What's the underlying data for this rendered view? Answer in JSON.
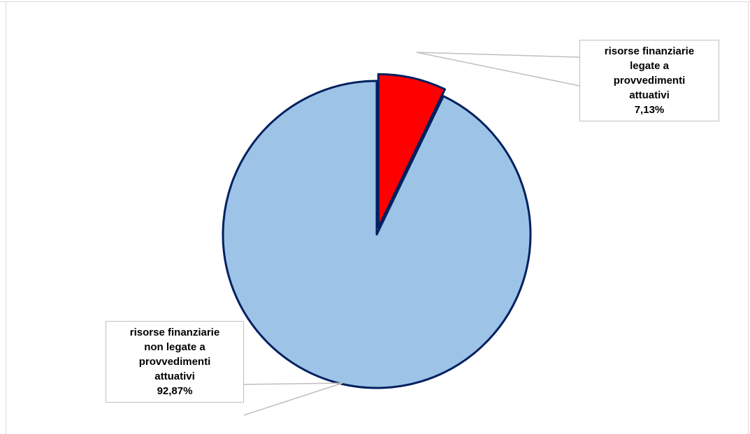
{
  "chart_data": {
    "type": "pie",
    "slices": [
      {
        "label_lines": [
          "risorse finanziarie",
          "non legate a",
          "provvedimenti",
          "attuativi"
        ],
        "value": 92.87,
        "value_label": "92,87%",
        "color": "#9dc3e6",
        "exploded": false
      },
      {
        "label_lines": [
          "risorse finanziarie",
          "legate a",
          "provvedimenti",
          "attuativi"
        ],
        "value": 7.13,
        "value_label": "7,13%",
        "color": "#ff0000",
        "exploded": true
      }
    ],
    "slice_border_color": "#002060",
    "leader_line_color": "#bfbfbf",
    "start_angle": "12 o'clock",
    "direction": "clockwise",
    "legend": "none"
  }
}
